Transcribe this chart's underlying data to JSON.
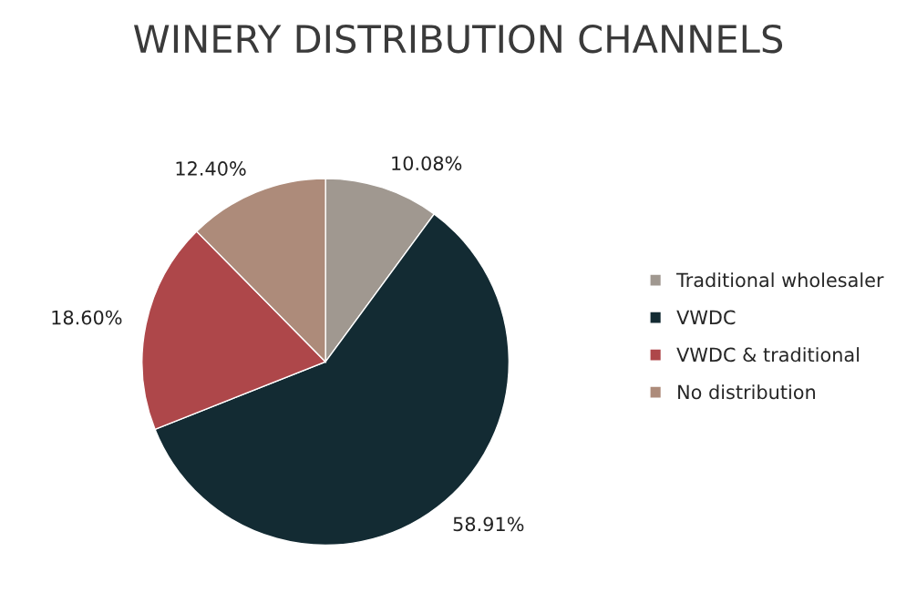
{
  "chart_data": {
    "type": "pie",
    "title": "WINERY DISTRIBUTION CHANNELS",
    "categories": [
      "Traditional wholesaler",
      "VWDC",
      "VWDC & traditional",
      "No distribution"
    ],
    "values": [
      10.08,
      58.91,
      18.6,
      12.4
    ],
    "value_labels": [
      "10.08%",
      "58.91%",
      "18.60%",
      "12.40%"
    ],
    "colors": [
      "#a09890",
      "#132b33",
      "#ae474a",
      "#ad8b7a"
    ],
    "legend": "right"
  }
}
